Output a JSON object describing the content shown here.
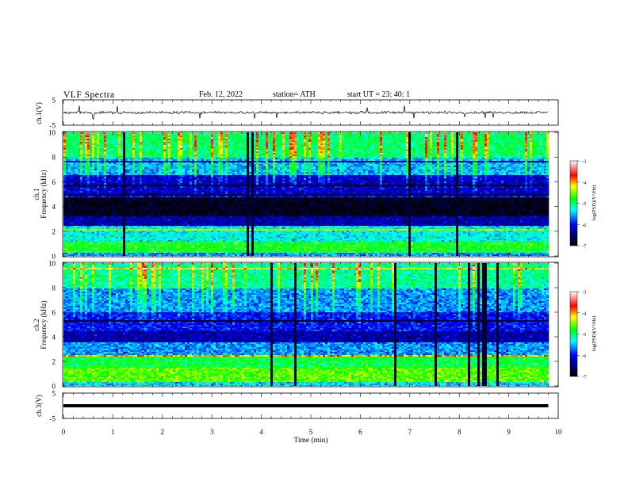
{
  "header": {
    "title": "VLF  Spectra",
    "date": "Feb. 12, 2022",
    "station": "station= ATH",
    "start_ut": "start  UT  =    23: 40: 1"
  },
  "chart_data": [
    {
      "type": "line",
      "panel": "ch1-waveform",
      "ylabel": "ch.1(V)",
      "ylim": [
        -5,
        5
      ],
      "yticks": [
        "5",
        "-5"
      ],
      "xlim": [
        0,
        10
      ],
      "data_x_extent": [
        0,
        9.8
      ],
      "baseline": 0,
      "trace_range_approx": [
        -1.5,
        1.5
      ],
      "color": "#000000"
    },
    {
      "type": "heatmap",
      "panel": "ch1-spectrogram",
      "ylabel_lines": [
        "ch.1",
        "Frequency (kHz)"
      ],
      "ylim": [
        0,
        10
      ],
      "yticks": [
        "0",
        "2",
        "4",
        "6",
        "8",
        "10"
      ],
      "xlim": [
        0,
        10
      ],
      "data_x_extent": [
        0,
        9.8
      ],
      "colorbar": {
        "label": "log(PSD)(V²/Hz)",
        "range": [
          -7,
          -3
        ],
        "ticks": [
          "-3",
          "-4",
          "-5",
          "-6",
          "-7"
        ]
      },
      "band_profile_logpsd": [
        {
          "f_range": [
            0,
            0.3
          ],
          "level": -5.6
        },
        {
          "f_range": [
            0.3,
            1.2
          ],
          "level": -4.8
        },
        {
          "f_range": [
            1.2,
            2.3
          ],
          "level": -5.3
        },
        {
          "f_range": [
            2.3,
            3.2
          ],
          "level": -6.3
        },
        {
          "f_range": [
            3.2,
            5.0
          ],
          "level": -6.9
        },
        {
          "f_range": [
            5.0,
            6.5
          ],
          "level": -6.2
        },
        {
          "f_range": [
            6.5,
            8.0
          ],
          "level": -5.5
        },
        {
          "f_range": [
            8.0,
            10.0
          ],
          "level": -5.0
        }
      ]
    },
    {
      "type": "heatmap",
      "panel": "ch2-spectrogram",
      "ylabel_lines": [
        "ch.2",
        "Frequency (kHz)"
      ],
      "ylim": [
        0,
        10
      ],
      "yticks": [
        "0",
        "2",
        "4",
        "6",
        "8",
        "10"
      ],
      "xlim": [
        0,
        10
      ],
      "data_x_extent": [
        0,
        9.8
      ],
      "colorbar": {
        "label": "log(PSD)(V²/Hz)",
        "range": [
          -7,
          -3
        ],
        "ticks": [
          "-3",
          "-4",
          "-5",
          "-6",
          "-7"
        ]
      },
      "band_profile_logpsd": [
        {
          "f_range": [
            0,
            0.3
          ],
          "level": -5.4
        },
        {
          "f_range": [
            0.3,
            1.5
          ],
          "level": -4.6
        },
        {
          "f_range": [
            1.5,
            2.5
          ],
          "level": -4.9
        },
        {
          "f_range": [
            2.5,
            3.5
          ],
          "level": -5.6
        },
        {
          "f_range": [
            3.5,
            4.5
          ],
          "level": -6.3
        },
        {
          "f_range": [
            4.5,
            6.0
          ],
          "level": -6.0
        },
        {
          "f_range": [
            6.0,
            8.0
          ],
          "level": -5.6
        },
        {
          "f_range": [
            8.0,
            10.0
          ],
          "level": -5.1
        }
      ]
    },
    {
      "type": "line",
      "panel": "ch3-waveform",
      "ylabel": "ch.3(V)",
      "ylim": [
        -5,
        5
      ],
      "yticks": [
        "5",
        "-5"
      ],
      "xlim": [
        0,
        10
      ],
      "xlabel": "Time  (min)",
      "xticks": [
        "0",
        "1",
        "2",
        "3",
        "4",
        "5",
        "6",
        "7",
        "8",
        "9",
        "10"
      ],
      "data_x_extent": [
        0,
        9.8
      ],
      "baseline": 0,
      "color": "#000000"
    }
  ]
}
